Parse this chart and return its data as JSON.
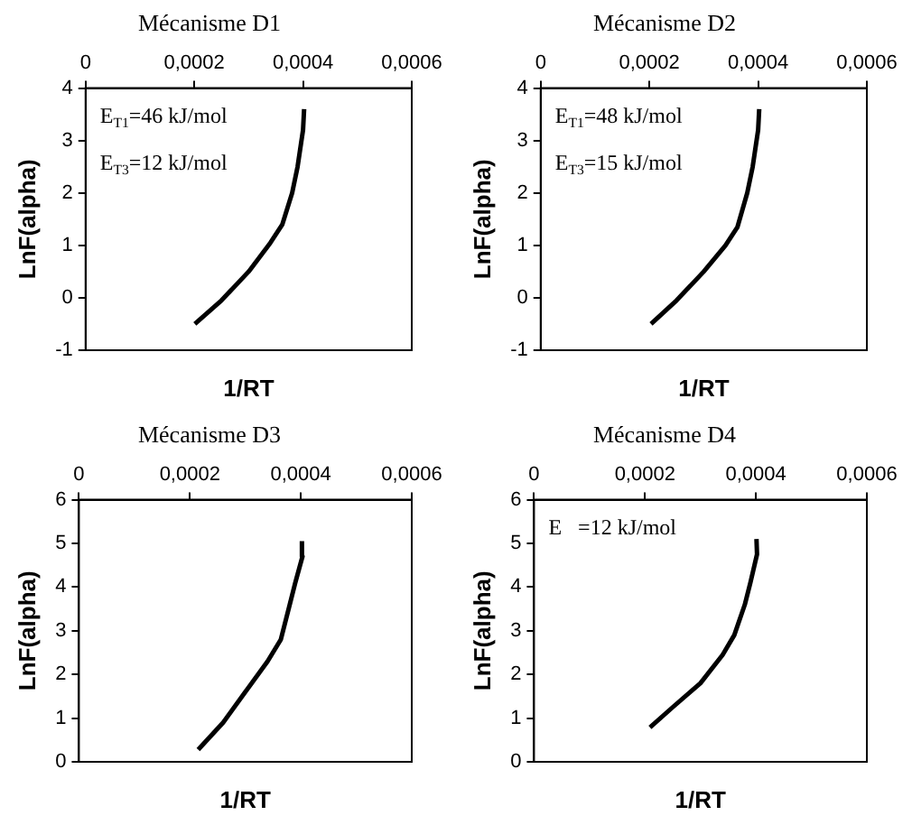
{
  "chart_data": [
    {
      "type": "line",
      "title": "Mécanisme D1",
      "xlabel": "1/RT",
      "ylabel": "LnF(alpha)",
      "xlim": [
        0,
        0.0006
      ],
      "xticks": [
        {
          "value": 0,
          "label": "0"
        },
        {
          "value": 0.0002,
          "label": "0,0002"
        },
        {
          "value": 0.0004,
          "label": "0,0004"
        },
        {
          "value": 0.0006,
          "label": "0,0006"
        }
      ],
      "ylim": [
        -1,
        4
      ],
      "yticks": [
        -1,
        0,
        1,
        2,
        3,
        4
      ],
      "grid": false,
      "legend": false,
      "marker": "none",
      "line_style": "solid",
      "annotations": [
        "E$_{T1}$=46 kJ/mol",
        "E$_{T3}$=12 kJ/mol"
      ],
      "x": [
        0.000201,
        0.00025,
        0.0003,
        0.00034,
        0.000362,
        0.00038,
        0.00039,
        0.0004,
        0.000402
      ],
      "series": [
        {
          "color": "#000000",
          "values": [
            -0.5,
            -0.05,
            0.5,
            1.05,
            1.4,
            2.0,
            2.5,
            3.2,
            3.6
          ]
        }
      ]
    },
    {
      "type": "line",
      "title": "Mécanisme D2",
      "xlabel": "1/RT",
      "ylabel": "LnF(alpha)",
      "xlim": [
        0,
        0.0006
      ],
      "xticks": [
        {
          "value": 0,
          "label": "0"
        },
        {
          "value": 0.0002,
          "label": "0,0002"
        },
        {
          "value": 0.0004,
          "label": "0,0004"
        },
        {
          "value": 0.0006,
          "label": "0,0006"
        }
      ],
      "ylim": [
        -1,
        4
      ],
      "yticks": [
        -1,
        0,
        1,
        2,
        3,
        4
      ],
      "grid": false,
      "legend": false,
      "marker": "none",
      "line_style": "solid",
      "annotations": [
        "E$_{T1}$=48 kJ/mol",
        "E$_{T3}$=15 kJ/mol"
      ],
      "x": [
        0.000203,
        0.00025,
        0.0003,
        0.00034,
        0.000362,
        0.00038,
        0.00039,
        0.0004,
        0.000402
      ],
      "series": [
        {
          "color": "#000000",
          "values": [
            -0.5,
            -0.05,
            0.5,
            1.0,
            1.35,
            2.0,
            2.5,
            3.2,
            3.6
          ]
        }
      ]
    },
    {
      "type": "line",
      "title": "Mécanisme D3",
      "xlabel": "1/RT",
      "ylabel": "LnF(alpha)",
      "xlim": [
        0,
        0.0006
      ],
      "xticks": [
        {
          "value": 0,
          "label": "0"
        },
        {
          "value": 0.0002,
          "label": "0,0002"
        },
        {
          "value": 0.0004,
          "label": "0,0004"
        },
        {
          "value": 0.0006,
          "label": "0,0006"
        }
      ],
      "ylim": [
        0,
        6
      ],
      "yticks": [
        0,
        1,
        2,
        3,
        4,
        5,
        6
      ],
      "grid": false,
      "legend": false,
      "marker": "none",
      "line_style": "solid",
      "x": [
        0.000215,
        0.00026,
        0.0003,
        0.00034,
        0.000364,
        0.00038,
        0.00039,
        0.000403,
        0.000402
      ],
      "series": [
        {
          "color": "#000000",
          "values": [
            0.28,
            0.9,
            1.6,
            2.3,
            2.8,
            3.6,
            4.1,
            4.7,
            5.05
          ]
        }
      ]
    },
    {
      "type": "line",
      "title": "Mécanisme D4",
      "xlabel": "1/RT",
      "ylabel": "LnF(alpha)",
      "xlim": [
        0,
        0.0006
      ],
      "xticks": [
        {
          "value": 0,
          "label": "0"
        },
        {
          "value": 0.0002,
          "label": "0,0002"
        },
        {
          "value": 0.0004,
          "label": "0,0004"
        },
        {
          "value": 0.0006,
          "label": "0,0006"
        }
      ],
      "ylim": [
        0,
        6
      ],
      "yticks": [
        0,
        1,
        2,
        3,
        4,
        5,
        6
      ],
      "grid": false,
      "legend": false,
      "marker": "none",
      "line_style": "solid",
      "annotations": [
        "E   =12 kJ/mol"
      ],
      "x": [
        0.000209,
        0.00025,
        0.0003,
        0.00034,
        0.000361,
        0.00038,
        0.00039,
        0.000402,
        0.000401
      ],
      "series": [
        {
          "color": "#000000",
          "values": [
            0.79,
            1.25,
            1.8,
            2.45,
            2.9,
            3.6,
            4.1,
            4.75,
            5.1
          ]
        }
      ]
    }
  ]
}
